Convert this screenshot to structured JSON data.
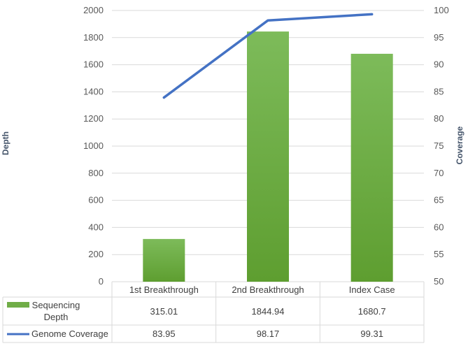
{
  "chart_data": {
    "type": "bar",
    "categories": [
      "1st Breakthrough",
      "2nd Breakthrough",
      "Index Case"
    ],
    "series": [
      {
        "name": "Sequencing Depth",
        "type": "bar",
        "axis": "left",
        "color": "#70AD47",
        "values": [
          315.01,
          1844.94,
          1680.7
        ],
        "labels": [
          "315.01",
          "1844.94",
          "1680.7"
        ]
      },
      {
        "name": "Genome Coverage",
        "type": "line",
        "axis": "right",
        "color": "#4472C4",
        "values": [
          83.95,
          98.17,
          99.31
        ],
        "labels": [
          "83.95",
          "98.17",
          "99.31"
        ]
      }
    ],
    "ylabel": "Depth",
    "y2label": "Coverage",
    "ylim": [
      0,
      2000
    ],
    "y2lim": [
      50,
      100
    ],
    "yticks": [
      0,
      200,
      400,
      600,
      800,
      1000,
      1200,
      1400,
      1600,
      1800,
      2000
    ],
    "y2ticks": [
      50,
      55,
      60,
      65,
      70,
      75,
      80,
      85,
      90,
      95,
      100
    ],
    "grid": true,
    "legend": "data-table"
  }
}
